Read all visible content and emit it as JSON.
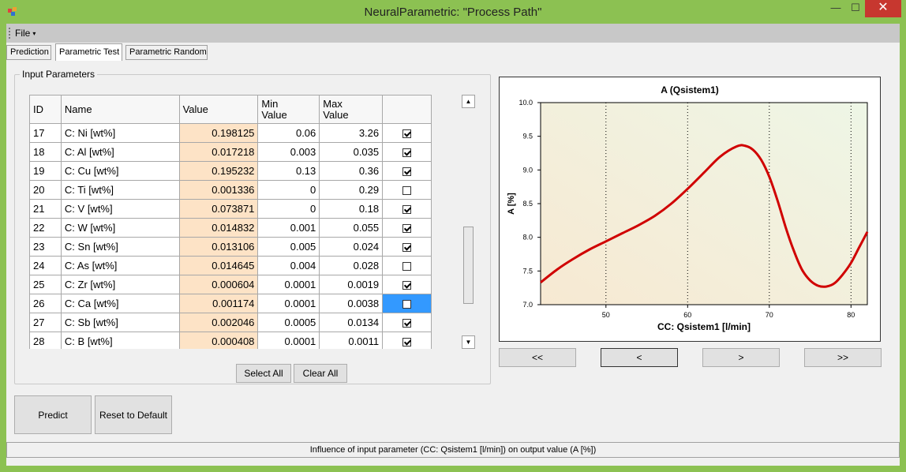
{
  "window": {
    "title": "NeuralParametric: \"Process Path\"",
    "min_glyph": "—",
    "max_glyph": "☐",
    "close_glyph": "✕"
  },
  "menu": {
    "file_label": "File",
    "file_arrow": "▾"
  },
  "tabs": [
    {
      "label": "Prediction",
      "active": false
    },
    {
      "label": "Parametric Test",
      "active": true
    },
    {
      "label": "Parametric Random",
      "active": false
    }
  ],
  "input_group": {
    "legend": "Input Parameters",
    "headers": {
      "id": "ID",
      "name": "Name",
      "value": "Value",
      "min": "Min\nValue",
      "max": "Max\nValue"
    },
    "rows": [
      {
        "id": "17",
        "name": "C: Ni [wt%]",
        "value": "0.198125",
        "min": "0.06",
        "max": "3.26",
        "checked": true
      },
      {
        "id": "18",
        "name": "C: Al [wt%]",
        "value": "0.017218",
        "min": "0.003",
        "max": "0.035",
        "checked": true
      },
      {
        "id": "19",
        "name": "C: Cu [wt%]",
        "value": "0.195232",
        "min": "0.13",
        "max": "0.36",
        "checked": true
      },
      {
        "id": "20",
        "name": "C: Ti [wt%]",
        "value": "0.001336",
        "min": "0",
        "max": "0.29",
        "checked": false
      },
      {
        "id": "21",
        "name": "C: V [wt%]",
        "value": "0.073871",
        "min": "0",
        "max": "0.18",
        "checked": true
      },
      {
        "id": "22",
        "name": "C: W [wt%]",
        "value": "0.014832",
        "min": "0.001",
        "max": "0.055",
        "checked": true
      },
      {
        "id": "23",
        "name": "C: Sn [wt%]",
        "value": "0.013106",
        "min": "0.005",
        "max": "0.024",
        "checked": true
      },
      {
        "id": "24",
        "name": "C: As [wt%]",
        "value": "0.014645",
        "min": "0.004",
        "max": "0.028",
        "checked": false
      },
      {
        "id": "25",
        "name": "C: Zr [wt%]",
        "value": "0.000604",
        "min": "0.0001",
        "max": "0.0019",
        "checked": true
      },
      {
        "id": "26",
        "name": "C: Ca [wt%]",
        "value": "0.001174",
        "min": "0.0001",
        "max": "0.0038",
        "checked": false,
        "selected": true
      },
      {
        "id": "27",
        "name": "C: Sb [wt%]",
        "value": "0.002046",
        "min": "0.0005",
        "max": "0.0134",
        "checked": true
      },
      {
        "id": "28",
        "name": "C: B [wt%]",
        "value": "0.000408",
        "min": "0.0001",
        "max": "0.0011",
        "checked": true
      }
    ],
    "scroll_up": "▲",
    "scroll_down": "▼",
    "select_all_label": "Select All",
    "clear_all_label": "Clear All"
  },
  "actions": {
    "predict_label": "Predict",
    "reset_label": "Reset to Default"
  },
  "nav": {
    "first": "<<",
    "prev": "<",
    "next": ">",
    "last": ">>"
  },
  "status": {
    "text": "Influence of input parameter (CC: Qsistem1 [l/min]) on output value (A [%])"
  },
  "colors": {
    "curve": "#d00000",
    "value_cell": "#fde3c6",
    "selection": "#3399ff"
  },
  "chart_data": {
    "type": "line",
    "title": "A (Qsistem1)",
    "xlabel": "CC: Qsistem1 [l/min]",
    "ylabel": "A [%]",
    "xlim": [
      42,
      82
    ],
    "ylim": [
      7.0,
      10.0
    ],
    "xticks": [
      50,
      60,
      70,
      80
    ],
    "yticks": [
      7.0,
      7.5,
      8.0,
      8.5,
      9.0,
      9.5,
      10.0
    ],
    "ytick_labels": [
      "7.0",
      "7.5",
      "8.0",
      "8.5",
      "9.0",
      "9.5",
      "10.0"
    ],
    "grid": "vertical dotted",
    "series": [
      {
        "x": [
          42,
          44,
          46,
          48,
          50,
          52,
          54,
          56,
          58,
          60,
          62,
          64,
          66,
          67,
          68,
          69,
          70,
          71,
          72,
          73,
          74,
          75,
          76,
          77,
          78,
          79,
          80,
          81,
          82
        ],
        "values": [
          7.33,
          7.52,
          7.68,
          7.82,
          7.94,
          8.06,
          8.18,
          8.32,
          8.5,
          8.72,
          8.96,
          9.2,
          9.35,
          9.36,
          9.3,
          9.15,
          8.9,
          8.55,
          8.15,
          7.8,
          7.52,
          7.36,
          7.28,
          7.27,
          7.32,
          7.45,
          7.62,
          7.85,
          8.08
        ]
      }
    ]
  }
}
